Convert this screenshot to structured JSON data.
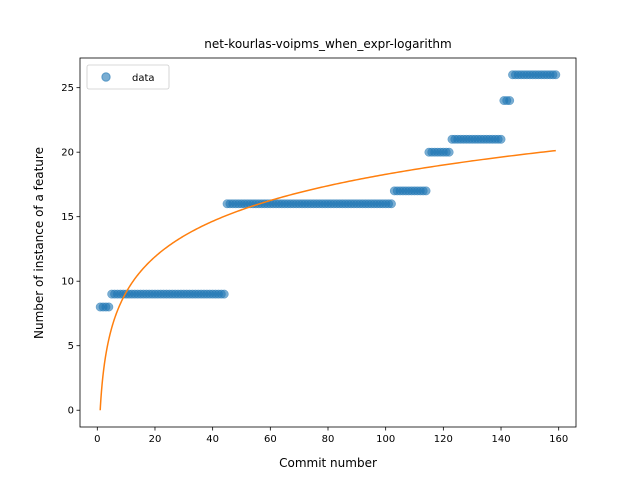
{
  "chart_data": {
    "type": "scatter",
    "title": "net-kourlas-voipms_when_expr-logarithm",
    "xlabel": "Commit number",
    "ylabel": "Number of instance of a feature",
    "xlim": [
      -6,
      166
    ],
    "ylim": [
      -1.3,
      27.3
    ],
    "xticks": [
      0,
      20,
      40,
      60,
      80,
      100,
      120,
      140,
      160
    ],
    "yticks": [
      0,
      5,
      10,
      15,
      20,
      25
    ],
    "legend": {
      "position": "top-left",
      "entries": [
        {
          "label": "data",
          "marker": "circle",
          "color": "#1f77b4"
        }
      ]
    },
    "grid": false,
    "series": [
      {
        "name": "data",
        "kind": "scatter",
        "color": "#1f77b4",
        "alpha": 0.6,
        "segments": [
          {
            "x_start": 1,
            "x_end": 4,
            "y": 8
          },
          {
            "x_start": 5,
            "x_end": 44,
            "y": 9
          },
          {
            "x_start": 45,
            "x_end": 102,
            "y": 16
          },
          {
            "x_start": 103,
            "x_end": 114,
            "y": 17
          },
          {
            "x_start": 115,
            "x_end": 122,
            "y": 20
          },
          {
            "x_start": 123,
            "x_end": 140,
            "y": 21
          },
          {
            "x_start": 141,
            "x_end": 143,
            "y": 24
          },
          {
            "x_start": 144,
            "x_end": 159,
            "y": 26
          }
        ]
      },
      {
        "kind": "line",
        "color": "#ff7f0e",
        "fit": {
          "model": "a*ln(x)+b",
          "a": 3.97,
          "b": 0.0,
          "x_start": 1,
          "x_end": 159
        }
      }
    ]
  }
}
